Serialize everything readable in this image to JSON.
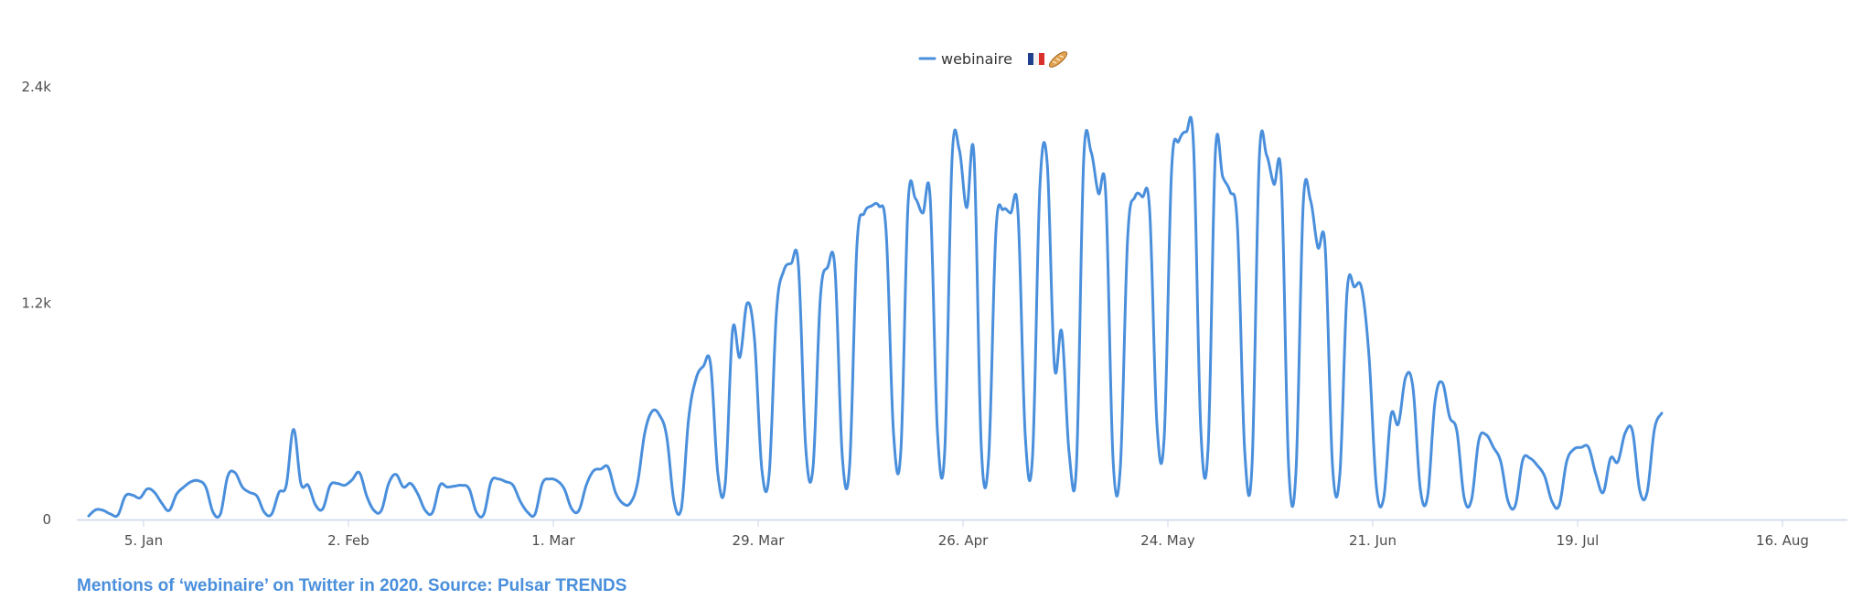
{
  "colors": {
    "series": "#4a8fdc",
    "axis": "#ccd6eb",
    "text": "#4d4d4d",
    "caption": "#4a8fdc"
  },
  "legend": {
    "label": "webinaire",
    "icons": [
      "french-flag-icon",
      "baguette-icon"
    ],
    "placement": "top-center"
  },
  "caption": "Mentions of ‘webinaire’ on Twitter in 2020. Source: Pulsar TRENDS",
  "chart_data": {
    "type": "line",
    "title": "",
    "xlabel": "",
    "ylabel": "",
    "x_start": "2020-01-01",
    "x_step_days": 1,
    "x_ticks": [
      "5. Jan",
      "2. Feb",
      "1. Mar",
      "29. Mar",
      "26. Apr",
      "24. May",
      "21. Jun",
      "19. Jul",
      "16. Aug"
    ],
    "y_ticks": [
      "0",
      "1.2k",
      "2.4k"
    ],
    "ylim": [
      0,
      2400
    ],
    "grid": false,
    "series": [
      {
        "name": "webinaire",
        "values": [
          20,
          55,
          50,
          30,
          25,
          130,
          135,
          120,
          170,
          150,
          90,
          50,
          140,
          180,
          210,
          215,
          180,
          40,
          30,
          240,
          260,
          180,
          150,
          130,
          40,
          30,
          150,
          190,
          500,
          200,
          190,
          80,
          60,
          190,
          200,
          190,
          220,
          260,
          130,
          50,
          50,
          200,
          250,
          180,
          200,
          140,
          50,
          40,
          190,
          180,
          185,
          190,
          170,
          40,
          30,
          210,
          225,
          210,
          190,
          100,
          40,
          30,
          200,
          225,
          215,
          170,
          60,
          50,
          190,
          270,
          280,
          290,
          150,
          90,
          90,
          200,
          480,
          600,
          580,
          460,
          100,
          60,
          560,
          780,
          850,
          860,
          250,
          200,
          1050,
          900,
          1200,
          1000,
          280,
          250,
          1150,
          1380,
          1420,
          1410,
          400,
          290,
          1230,
          1400,
          1390,
          350,
          300,
          1520,
          1700,
          1740,
          1740,
          1590,
          480,
          380,
          1760,
          1780,
          1700,
          1790,
          490,
          380,
          2000,
          2050,
          1730,
          2020,
          400,
          340,
          1600,
          1720,
          1700,
          1710,
          470,
          350,
          1840,
          1980,
          850,
          1040,
          370,
          300,
          2000,
          2040,
          1810,
          1810,
          340,
          290,
          1560,
          1790,
          1790,
          1720,
          530,
          460,
          1930,
          2100,
          2150,
          2080,
          500,
          400,
          2040,
          1900,
          1820,
          1630,
          380,
          300,
          2010,
          2020,
          1860,
          1890,
          300,
          260,
          1750,
          1770,
          1510,
          1510,
          300,
          250,
          1270,
          1290,
          1280,
          900,
          180,
          120,
          580,
          530,
          790,
          730,
          170,
          130,
          650,
          760,
          570,
          490,
          120,
          110,
          440,
          470,
          400,
          320,
          100,
          80,
          330,
          340,
          300,
          240,
          100,
          80,
          320,
          390,
          400,
          400,
          250,
          150,
          340,
          320,
          480,
          490,
          160,
          150,
          500,
          590
        ]
      }
    ]
  }
}
